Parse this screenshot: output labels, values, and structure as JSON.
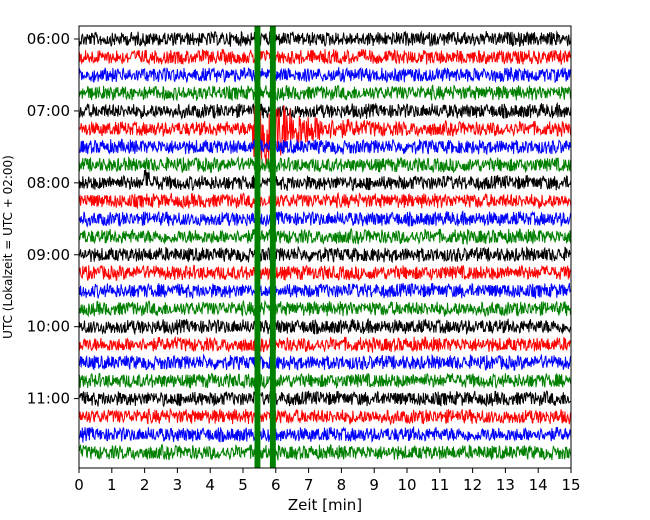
{
  "chart_data": {
    "type": "line",
    "title": "",
    "xlabel": "Zeit  [min]",
    "ylabel": "UTC (Lokalzeit = UTC + 02:00)",
    "xlim": [
      0,
      15
    ],
    "x_ticks": [
      "0",
      "1",
      "2",
      "3",
      "4",
      "5",
      "6",
      "7",
      "8",
      "9",
      "10",
      "11",
      "12",
      "13",
      "14",
      "15"
    ],
    "y_ticks": [
      "06:00",
      "07:00",
      "08:00",
      "09:00",
      "10:00",
      "11:00"
    ],
    "trace_interval_min": 15,
    "trace_colors": [
      "#000000",
      "#ff0000",
      "#0000ff",
      "#008000"
    ],
    "traces": [
      {
        "start": "06:00"
      },
      {
        "start": "06:15"
      },
      {
        "start": "06:30"
      },
      {
        "start": "06:45"
      },
      {
        "start": "07:00"
      },
      {
        "start": "07:15"
      },
      {
        "start": "07:30"
      },
      {
        "start": "07:45"
      },
      {
        "start": "08:00"
      },
      {
        "start": "08:15"
      },
      {
        "start": "08:30"
      },
      {
        "start": "08:45"
      },
      {
        "start": "09:00"
      },
      {
        "start": "09:15"
      },
      {
        "start": "09:30"
      },
      {
        "start": "09:45"
      },
      {
        "start": "10:00"
      },
      {
        "start": "10:15"
      },
      {
        "start": "10:30"
      },
      {
        "start": "10:45"
      },
      {
        "start": "11:00"
      },
      {
        "start": "11:15"
      },
      {
        "start": "11:30"
      },
      {
        "start": "11:45"
      }
    ],
    "events": [
      {
        "trace_start": "07:15",
        "x_start": 5.3,
        "description": "large event, decaying coda"
      },
      {
        "trace_start": "08:00",
        "x_start": 2.0,
        "description": "small local event"
      }
    ],
    "grid": false,
    "legend": "none"
  }
}
